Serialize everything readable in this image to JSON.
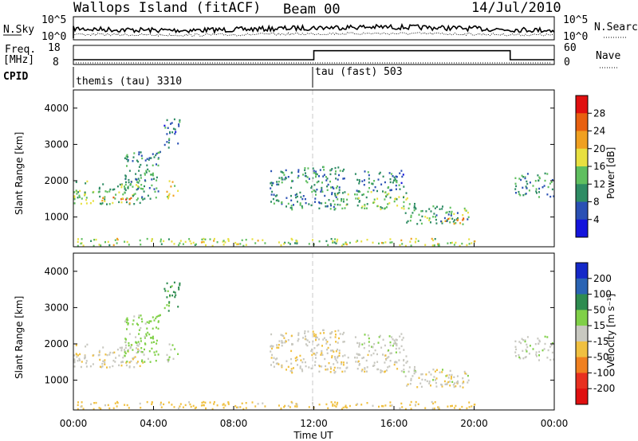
{
  "header": {
    "station": "Wallops Island (fitACF)",
    "beam": "Beam 00",
    "date": "14/Jul/2010"
  },
  "noise_panel": {
    "left_label": "N.Sky",
    "right_label": "N.Search",
    "left_ticks": [
      "10^5",
      "10^0"
    ],
    "right_ticks": [
      "10^5",
      "10^0"
    ]
  },
  "freq_panel": {
    "left_label_1": "Freq.",
    "left_label_2": "[MHz]",
    "left_ticks": [
      "18",
      "8"
    ],
    "right_label": "Nave",
    "right_ticks": [
      "60",
      "0"
    ]
  },
  "cpid": {
    "label": "CPID",
    "segments": [
      {
        "name": "themis (tau) 3310",
        "start_hour": 0
      },
      {
        "name": "tau (fast) 503",
        "start_hour": 12
      }
    ]
  },
  "power_panel": {
    "ylabel": "Slant Range [km]",
    "yticks": [
      "1000",
      "2000",
      "3000",
      "4000"
    ],
    "colorbar_label": "Power [dB]",
    "colorbar_ticks": [
      "4",
      "8",
      "12",
      "16",
      "20",
      "24",
      "28"
    ],
    "colorbar_colors": [
      "#1414dc",
      "#2a50b4",
      "#2e8c64",
      "#5fbf5f",
      "#e8e040",
      "#f0a020",
      "#e86010",
      "#e01010"
    ]
  },
  "velocity_panel": {
    "ylabel": "Slant Range [km]",
    "yticks": [
      "1000",
      "2000",
      "3000",
      "4000"
    ],
    "colorbar_label": "Velocity [m s⁻¹]",
    "colorbar_ticks": [
      "200",
      "100",
      "50",
      "15",
      "-15",
      "-50",
      "-100",
      "-200"
    ],
    "colorbar_colors": [
      "#1428c8",
      "#2a64b4",
      "#2e8c50",
      "#80d048",
      "#c8c8c0",
      "#f0c040",
      "#f08020",
      "#e83020",
      "#e01010"
    ]
  },
  "x_axis": {
    "label": "Time UT",
    "ticks": [
      "00:00",
      "04:00",
      "08:00",
      "12:00",
      "16:00",
      "20:00",
      "00:00"
    ]
  },
  "chart_data": {
    "type": "heatmap",
    "x_range_hours": [
      0,
      24
    ],
    "y_range_km": [
      180,
      4500
    ],
    "freq_segments": [
      {
        "start": 0,
        "end": 12,
        "freq_mhz": 10.5
      },
      {
        "start": 12,
        "end": 21.8,
        "freq_mhz": 15.2
      },
      {
        "start": 21.8,
        "end": 24,
        "freq_mhz": 10.5
      }
    ],
    "echo_regions": [
      {
        "t0": 0.0,
        "t1": 3.5,
        "r0": 1350,
        "r1": 2000,
        "power": 14,
        "vel": -5
      },
      {
        "t0": 1.2,
        "t1": 3.0,
        "r0": 1350,
        "r1": 1550,
        "power": 24,
        "vel": 0
      },
      {
        "t0": 2.5,
        "t1": 4.3,
        "r0": 1500,
        "r1": 2800,
        "power": 10,
        "vel": 30
      },
      {
        "t0": 4.6,
        "t1": 5.2,
        "r0": 1500,
        "r1": 2000,
        "power": 20,
        "vel": 10
      },
      {
        "t0": 4.5,
        "t1": 5.3,
        "r0": 2900,
        "r1": 3700,
        "power": 8,
        "vel": 60
      },
      {
        "t0": 9.8,
        "t1": 13.5,
        "r0": 1200,
        "r1": 2400,
        "power": 10,
        "vel": -8
      },
      {
        "t0": 13.0,
        "t1": 17.0,
        "r0": 1200,
        "r1": 1700,
        "power": 14,
        "vel": -5
      },
      {
        "t0": 14.0,
        "t1": 16.5,
        "r0": 1700,
        "r1": 2300,
        "power": 8,
        "vel": 5
      },
      {
        "t0": 16.4,
        "t1": 19.8,
        "r0": 800,
        "r1": 1300,
        "power": 12,
        "vel": 0
      },
      {
        "t0": 18.5,
        "t1": 19.5,
        "r0": 800,
        "r1": 1100,
        "power": 22,
        "vel": -10
      },
      {
        "t0": 22.0,
        "t1": 24.0,
        "r0": 1550,
        "r1": 2200,
        "power": 10,
        "vel": 5
      },
      {
        "t0": 0.0,
        "t1": 20.0,
        "r0": 200,
        "r1": 400,
        "power": 16,
        "vel": -30
      }
    ]
  }
}
